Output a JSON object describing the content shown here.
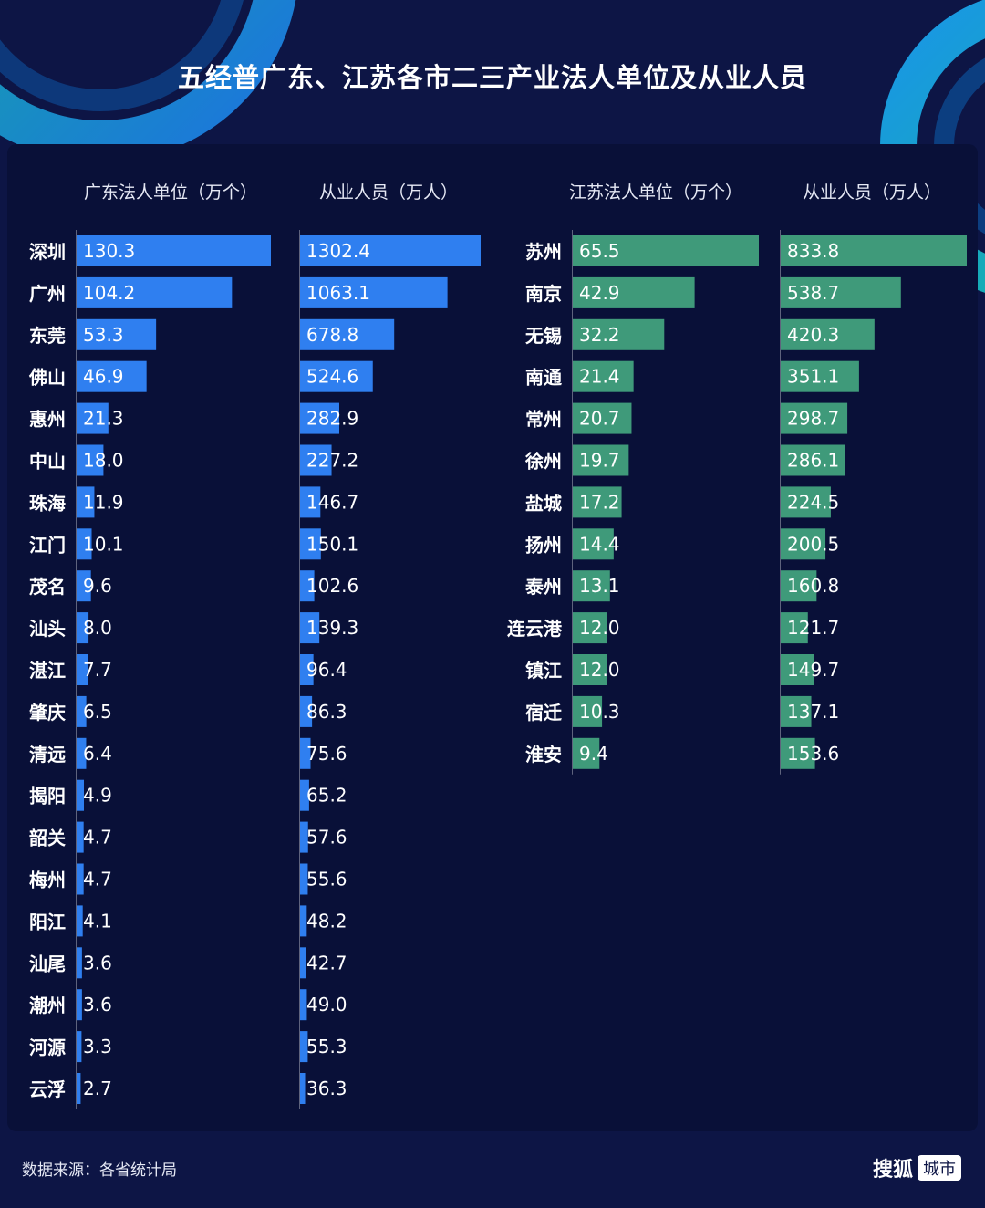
{
  "title": "五经普广东、江苏各市二三产业法人单位及从业人员",
  "footer": {
    "source": "数据来源：各省统计局",
    "brand_name": "搜狐",
    "brand_badge": "城市"
  },
  "colors": {
    "background": "#0d1545",
    "panel": "#091038",
    "guangdong_bar": "#2f7ff0",
    "jiangsu_bar": "#3f9a7a",
    "accent_teal": "#15b8a8",
    "accent_blue": "#1e8cf0"
  },
  "chart_data": [
    {
      "type": "bar",
      "orientation": "horizontal",
      "title": "广东法人单位（万个）",
      "categories": [
        "深圳",
        "广州",
        "东莞",
        "佛山",
        "惠州",
        "中山",
        "珠海",
        "江门",
        "茂名",
        "汕头",
        "湛江",
        "肇庆",
        "清远",
        "揭阳",
        "韶关",
        "梅州",
        "阳江",
        "汕尾",
        "潮州",
        "河源",
        "云浮"
      ],
      "values": [
        130.3,
        104.2,
        53.3,
        46.9,
        21.3,
        18.0,
        11.9,
        10.1,
        9.6,
        8.0,
        7.7,
        6.5,
        6.4,
        4.9,
        4.7,
        4.7,
        4.1,
        3.6,
        3.6,
        3.3,
        2.7
      ],
      "labels": [
        "130.3",
        "104.2",
        "53.3",
        "46.9",
        "21.3",
        "18.0",
        "11.9",
        "10.1",
        "9.6",
        "8.0",
        "7.7",
        "6.5",
        "6.4",
        "4.9",
        "4.7",
        "4.7",
        "4.1",
        "3.6",
        "3.6",
        "3.3",
        "2.7"
      ]
    },
    {
      "type": "bar",
      "orientation": "horizontal",
      "title": "从业人员（万人）",
      "categories": [
        "深圳",
        "广州",
        "东莞",
        "佛山",
        "惠州",
        "中山",
        "珠海",
        "江门",
        "茂名",
        "汕头",
        "湛江",
        "肇庆",
        "清远",
        "揭阳",
        "韶关",
        "梅州",
        "阳江",
        "汕尾",
        "潮州",
        "河源",
        "云浮"
      ],
      "values": [
        1302.4,
        1063.1,
        678.8,
        524.6,
        282.9,
        227.2,
        146.7,
        150.1,
        102.6,
        139.3,
        96.4,
        86.3,
        75.6,
        65.2,
        57.6,
        55.6,
        48.2,
        42.7,
        49.0,
        55.3,
        36.3
      ],
      "labels": [
        "1302.4",
        "1063.1",
        "678.8",
        "524.6",
        "282.9",
        "227.2",
        "146.7",
        "150.1",
        "102.6",
        "139.3",
        "96.4",
        "86.3",
        "75.6",
        "65.2",
        "57.6",
        "55.6",
        "48.2",
        "42.7",
        "49.0",
        "55.3",
        "36.3"
      ]
    },
    {
      "type": "bar",
      "orientation": "horizontal",
      "title": "江苏法人单位（万个）",
      "categories": [
        "苏州",
        "南京",
        "无锡",
        "南通",
        "常州",
        "徐州",
        "盐城",
        "扬州",
        "泰州",
        "连云港",
        "镇江",
        "宿迁",
        "淮安"
      ],
      "values": [
        65.5,
        42.9,
        32.2,
        21.4,
        20.7,
        19.7,
        17.2,
        14.4,
        13.1,
        12.0,
        12.0,
        10.3,
        9.4
      ],
      "labels": [
        "65.5",
        "42.9",
        "32.2",
        "21.4",
        "20.7",
        "19.7",
        "17.2",
        "14.4",
        "13.1",
        "12.0",
        "12.0",
        "10.3",
        "9.4"
      ]
    },
    {
      "type": "bar",
      "orientation": "horizontal",
      "title": "从业人员（万人）",
      "categories": [
        "苏州",
        "南京",
        "无锡",
        "南通",
        "常州",
        "徐州",
        "盐城",
        "扬州",
        "泰州",
        "连云港",
        "镇江",
        "宿迁",
        "淮安"
      ],
      "values": [
        833.8,
        538.7,
        420.3,
        351.1,
        298.7,
        286.1,
        224.5,
        200.5,
        160.8,
        121.7,
        149.7,
        137.1,
        153.6
      ],
      "labels": [
        "833.8",
        "538.7",
        "420.3",
        "351.1",
        "298.7",
        "286.1",
        "224.5",
        "200.5",
        "160.8",
        "121.7",
        "149.7",
        "137.1",
        "153.6"
      ]
    }
  ]
}
